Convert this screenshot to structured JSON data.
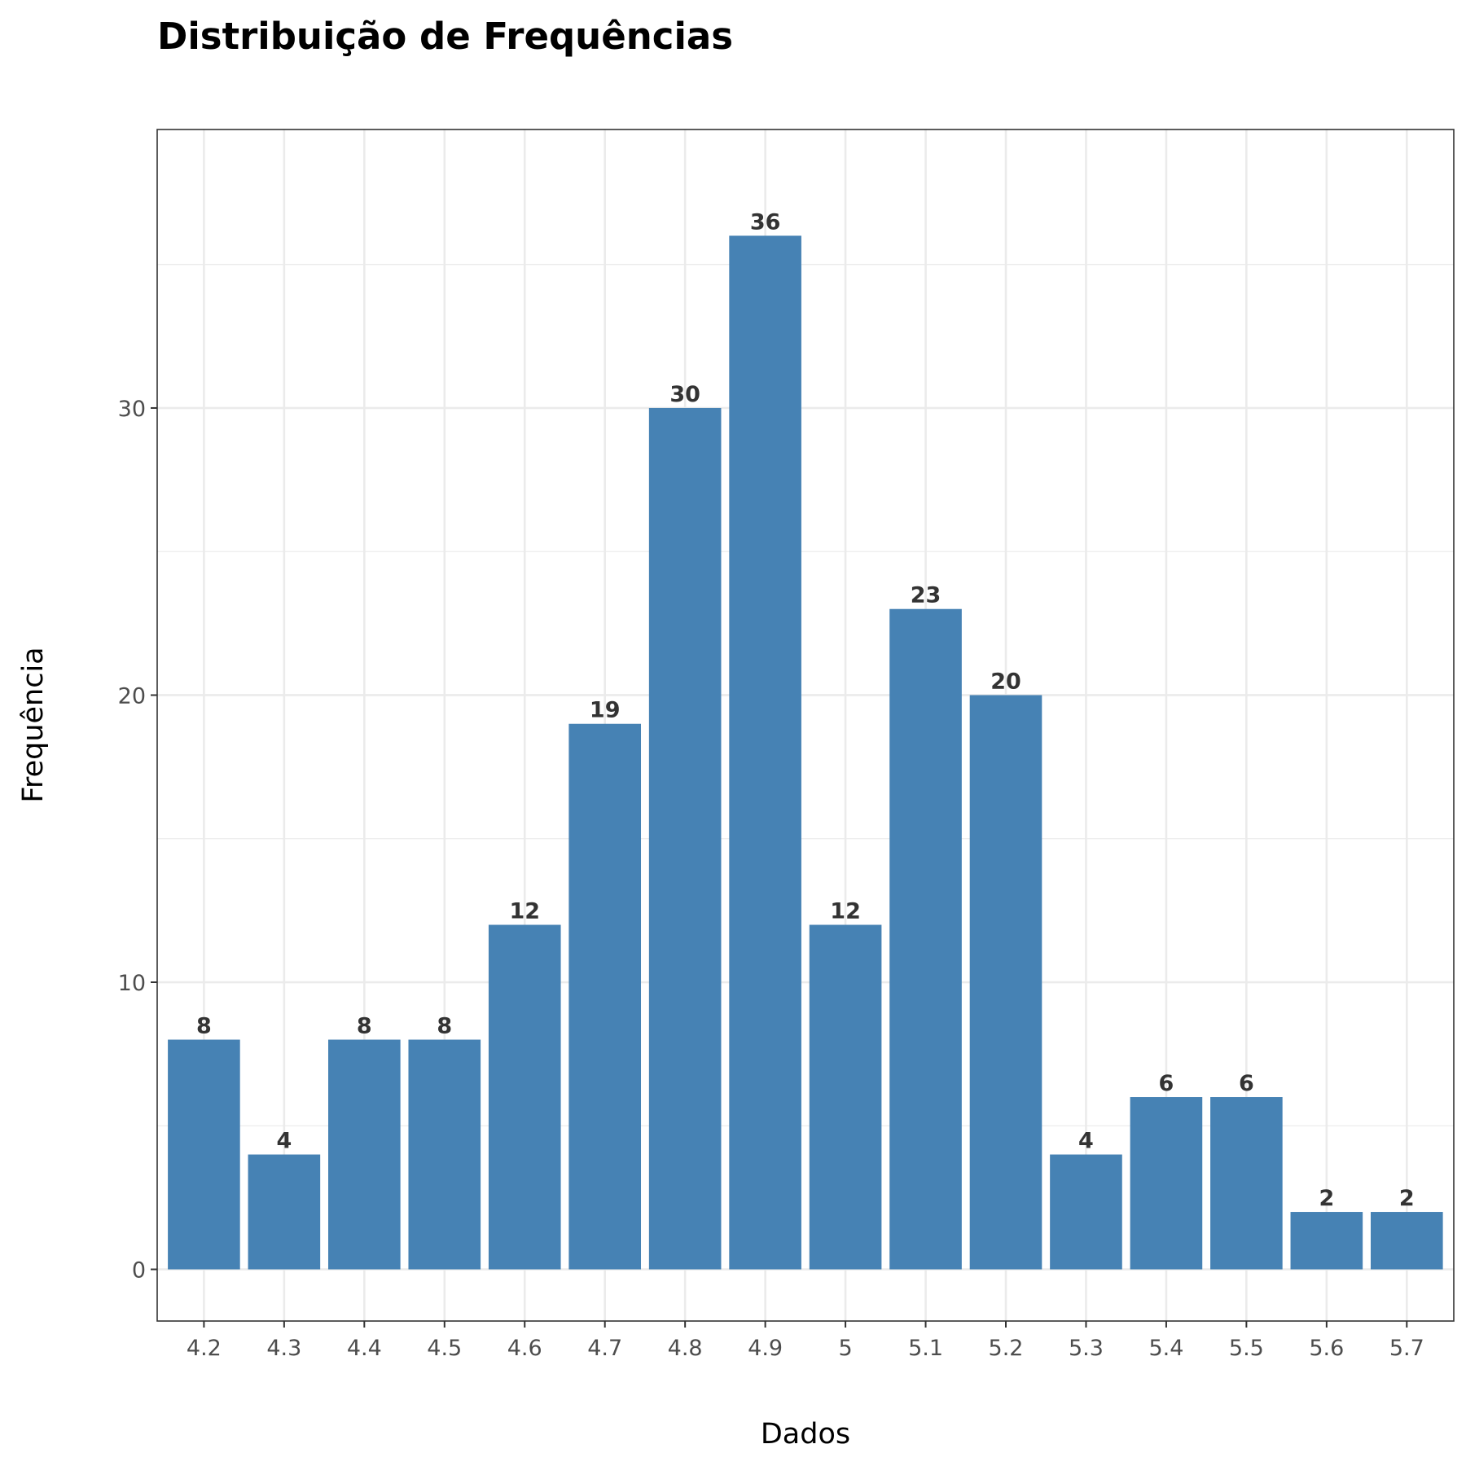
{
  "chart_data": {
    "type": "bar",
    "title": "Distribuição de Frequências",
    "xlabel": "Dados",
    "ylabel": "Frequência",
    "categories": [
      "4.2",
      "4.3",
      "4.4",
      "4.5",
      "4.6",
      "4.7",
      "4.8",
      "4.9",
      "5",
      "5.1",
      "5.2",
      "5.3",
      "5.4",
      "5.5",
      "5.6",
      "5.7"
    ],
    "values": [
      8,
      4,
      8,
      8,
      12,
      19,
      30,
      36,
      12,
      23,
      20,
      4,
      6,
      6,
      2,
      2
    ],
    "yticks": [
      0,
      10,
      20,
      30
    ],
    "ylim": [
      -1.8,
      39.7
    ],
    "grid": true,
    "data_labels": true,
    "colors": {
      "bar": "#4682B4",
      "grid": "#ebebeb",
      "border": "#333333"
    }
  }
}
